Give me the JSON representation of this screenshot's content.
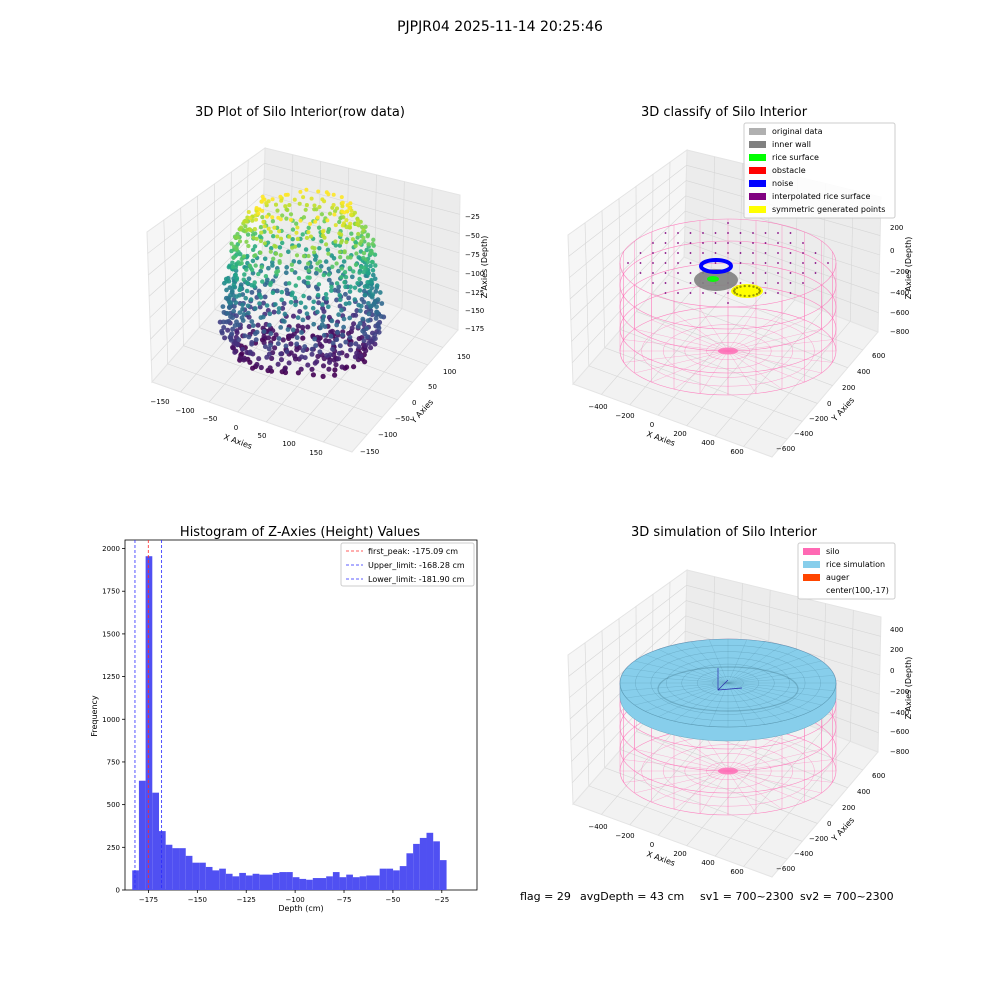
{
  "figure": {
    "suptitle": "PJPJR04 2025-11-14 20:25:46",
    "status_line": {
      "flag": "flag = 29",
      "avg_depth": "avgDepth = 43 cm",
      "sv1": "sv1 = 700~2300",
      "sv2": "sv2 = 700~2300"
    }
  },
  "colors": {
    "hist_bar": "#5050f2",
    "first_peak": "#ff2a2a",
    "limit": "#2a2aff",
    "silo": "#ff69b4",
    "rice": "#87ceeb",
    "auger": "#ff4500",
    "noise": "#0000ff",
    "symmetric": "#ffff00",
    "inner_wall": "#808080",
    "rice_surface": "#00ff00",
    "obstacle": "#ff0000",
    "interp": "#800080",
    "original": "#b0b0b0",
    "pane": "#f2f2f2",
    "grid": "#d6d6d6"
  },
  "chart_data": [
    {
      "type": "scatter",
      "subtype": "3d",
      "title": "3D Plot of Silo Interior(row data)",
      "xlabel": "X Axies",
      "ylabel": "Y Axies",
      "zlabel": "Z Axies (Depth)",
      "x_ticks": [
        "−150",
        "−100",
        "−50",
        "0",
        "50",
        "100",
        "150"
      ],
      "y_ticks": [
        "150",
        "100",
        "50",
        "0",
        "−50",
        "−100",
        "−150"
      ],
      "z_ticks": [
        "−25",
        "−50",
        "−75",
        "−100",
        "−125",
        "−150",
        "−175"
      ],
      "xlim": [
        -170,
        170
      ],
      "ylim": [
        -170,
        170
      ],
      "zlim": [
        -190,
        -10
      ],
      "colormap": "viridis"
    },
    {
      "type": "scatter",
      "subtype": "3d",
      "title": "3D classify of Silo Interior",
      "xlabel": "X Axies",
      "ylabel": "Y Axies",
      "zlabel": "Z Axies (Depth)",
      "x_ticks": [
        "−400",
        "−200",
        "0",
        "200",
        "400",
        "600"
      ],
      "y_ticks": [
        "600",
        "400",
        "200",
        "0",
        "−200",
        "−400",
        "−600"
      ],
      "z_ticks": [
        "200",
        "0",
        "−200",
        "−400",
        "−600",
        "−800"
      ],
      "legend": [
        {
          "label": "original data",
          "color": "#b0b0b0"
        },
        {
          "label": "inner wall",
          "color": "#808080"
        },
        {
          "label": "rice surface",
          "color": "#00ff00"
        },
        {
          "label": "obstacle",
          "color": "#ff0000"
        },
        {
          "label": "noise",
          "color": "#0000ff"
        },
        {
          "label": "interpolated rice surface",
          "color": "#800080"
        },
        {
          "label": "symmetric generated points",
          "color": "#ffff00"
        }
      ],
      "legend_position": "top-right"
    },
    {
      "type": "bar",
      "subtype": "histogram",
      "title": "Histogram of Z-Axies (Height) Values",
      "xlabel": "Depth (cm)",
      "ylabel": "Frequency",
      "xlim": [
        -187,
        -7
      ],
      "ylim": [
        0,
        2050
      ],
      "x_ticks": [
        -175,
        -150,
        -125,
        -100,
        -75,
        -50,
        -25
      ],
      "x_tick_labels": [
        "−175",
        "−150",
        "−125",
        "−100",
        "−75",
        "−50",
        "−25"
      ],
      "y_ticks": [
        0,
        250,
        500,
        750,
        1000,
        1250,
        1500,
        1750,
        2000
      ],
      "bin_start": -183.3,
      "bin_width": 3.42,
      "values": [
        115,
        640,
        1955,
        570,
        345,
        265,
        245,
        245,
        200,
        160,
        160,
        135,
        115,
        125,
        95,
        80,
        100,
        85,
        95,
        90,
        90,
        100,
        105,
        105,
        75,
        65,
        60,
        70,
        70,
        80,
        105,
        75,
        90,
        75,
        80,
        85,
        85,
        125,
        125,
        115,
        140,
        215,
        270,
        305,
        335,
        285,
        175
      ],
      "vlines": [
        {
          "label": "first_peak: -175.09 cm",
          "x": -175.09,
          "color": "#ff2a2a"
        },
        {
          "label": "Upper_limit: -168.28 cm",
          "x": -168.28,
          "color": "#2a2aff"
        },
        {
          "label": "Lower_limit: -181.90 cm",
          "x": -181.9,
          "color": "#2a2aff"
        }
      ],
      "legend_position": "top-right"
    },
    {
      "type": "scatter",
      "subtype": "3d-surface",
      "title": "3D simulation of Silo Interior",
      "xlabel": "X Axies",
      "ylabel": "Y Axies",
      "zlabel": "Z Axies (Depth)",
      "x_ticks": [
        "−400",
        "−200",
        "0",
        "200",
        "400",
        "600"
      ],
      "y_ticks": [
        "600",
        "400",
        "200",
        "0",
        "−200",
        "−400",
        "−600"
      ],
      "z_ticks": [
        "400",
        "200",
        "0",
        "−200",
        "−400",
        "−600",
        "−800"
      ],
      "legend": [
        {
          "label": "silo",
          "color": "#ff69b4"
        },
        {
          "label": "rice simulation",
          "color": "#87ceeb"
        },
        {
          "label": "auger",
          "color": "#ff4500"
        },
        {
          "label": "center(100,-17)",
          "color": ""
        }
      ],
      "legend_position": "top-right"
    }
  ]
}
